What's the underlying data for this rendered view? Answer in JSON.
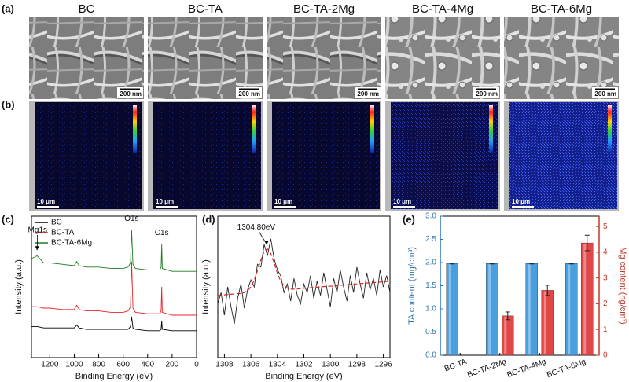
{
  "figure": {
    "panel_labels": [
      "(a)",
      "(b)",
      "(c)",
      "(d)",
      "(e)"
    ],
    "columns": [
      "BC",
      "BC-TA",
      "BC-TA-2Mg",
      "BC-TA-4Mg",
      "BC-TA-6Mg"
    ],
    "sem_scale_bar": "200 nm",
    "map_scale_bar": "10 μm"
  },
  "chart_data": [
    {
      "type": "line",
      "xlabel": "Binding Energy (eV)",
      "ylabel": "Intensity (a.u.)",
      "x": [
        1350,
        1304,
        1250,
        1200,
        1100,
        1000,
        980,
        960,
        900,
        800,
        700,
        600,
        560,
        540,
        531,
        520,
        500,
        400,
        300,
        290,
        285,
        280,
        200,
        100,
        0
      ],
      "series": [
        {
          "name": "BC",
          "color": "#000000",
          "values": [
            22,
            22,
            21,
            21,
            21,
            21,
            23,
            21,
            20,
            20,
            20,
            20,
            20,
            22,
            29,
            21,
            20,
            19,
            19,
            20,
            26,
            20,
            19,
            19,
            19
          ]
        },
        {
          "name": "BC-TA",
          "color": "#e8262a",
          "values": [
            36,
            36,
            35,
            35,
            34,
            34,
            37,
            34,
            33,
            33,
            32,
            32,
            33,
            36,
            68,
            35,
            32,
            31,
            31,
            33,
            50,
            32,
            30,
            30,
            30
          ]
        },
        {
          "name": "BC-TA-6Mg",
          "color": "#1e7b1e",
          "values": [
            70,
            72,
            67,
            67,
            66,
            65,
            68,
            65,
            64,
            64,
            63,
            63,
            64,
            67,
            90,
            66,
            63,
            62,
            62,
            64,
            80,
            63,
            61,
            61,
            61
          ]
        }
      ],
      "xlim": [
        1350,
        0
      ],
      "xticks": [
        1200,
        1000,
        800,
        600,
        400,
        200,
        0
      ],
      "ylim": [
        0,
        100
      ],
      "legend": "upper left",
      "annotations": [
        {
          "text": "Mg1s",
          "x": 1300,
          "y": 90,
          "arrow": [
            1304,
            76
          ]
        },
        {
          "text": "O1s",
          "x": 531,
          "y": 98
        },
        {
          "text": "C1s",
          "x": 285,
          "y": 88
        }
      ]
    },
    {
      "type": "line",
      "xlabel": "Binding Energy (eV)",
      "ylabel": "Intensity (a.u.)",
      "x": [
        1308.5,
        1308.25,
        1308,
        1307.75,
        1307.5,
        1307.25,
        1307,
        1306.75,
        1306.5,
        1306.25,
        1306,
        1305.75,
        1305.5,
        1305.25,
        1305,
        1304.75,
        1304.5,
        1304.25,
        1304,
        1303.75,
        1303.5,
        1303.25,
        1303,
        1302.75,
        1302.5,
        1302.25,
        1302,
        1301.75,
        1301.5,
        1301.25,
        1301,
        1300.75,
        1300.5,
        1300.25,
        1300,
        1299.75,
        1299.5,
        1299.25,
        1299,
        1298.75,
        1298.5,
        1298.25,
        1298,
        1297.75,
        1297.5,
        1297.25,
        1297,
        1296.75,
        1296.5,
        1296.25,
        1296,
        1295.75,
        1295.5
      ],
      "series": [
        {
          "color": "#222222",
          "values": [
            38,
            46,
            30,
            50,
            36,
            24,
            42,
            52,
            35,
            48,
            55,
            50,
            66,
            64,
            80,
            72,
            84,
            70,
            62,
            58,
            46,
            52,
            40,
            56,
            44,
            38,
            52,
            46,
            58,
            42,
            54,
            44,
            60,
            48,
            36,
            56,
            46,
            62,
            50,
            40,
            58,
            46,
            64,
            52,
            42,
            60,
            48,
            56,
            44,
            62,
            50,
            58,
            46
          ]
        },
        {
          "color": "#d62728",
          "dash": true,
          "values": [
            44.0,
            44.2,
            44.4,
            44.6,
            44.8,
            45.0,
            45.2,
            45.3,
            46.0,
            47.3,
            50.0,
            54.7,
            61.5,
            69.1,
            75.1,
            76.8,
            73.6,
            67.0,
            59.7,
            54.1,
            50.7,
            49.1,
            48.5,
            48.4,
            48.6,
            48.8,
            49.0,
            49.2,
            49.4,
            49.6,
            49.8,
            50.0,
            50.2,
            50.4,
            50.5,
            50.7,
            50.9,
            51.1,
            51.3,
            51.5,
            51.7,
            51.9,
            52.1,
            52.3,
            52.5,
            52.7,
            52.9,
            53.0,
            53.2,
            53.4,
            53.6,
            53.8,
            54.0
          ]
        }
      ],
      "xlim": [
        1308.5,
        1295.5
      ],
      "xticks": [
        1308,
        1306,
        1304,
        1302,
        1300,
        1298,
        1296
      ],
      "ylim": [
        0,
        100
      ],
      "annotations": [
        {
          "text": "1304.80eV",
          "x": 1305.6,
          "y": 92,
          "arrow": [
            1304.8,
            80
          ]
        }
      ]
    },
    {
      "type": "bar",
      "ylabel": "TA content (mg/cm³)",
      "y2label": "Mg content (ng/cm³)",
      "categories": [
        "BC-TA",
        "BC-TA-2Mg",
        "BC-TA-4Mg",
        "BC-TA-6Mg"
      ],
      "series": [
        {
          "color": "#4a9fe0",
          "axis": "y",
          "values": [
            1.98,
            1.98,
            1.98,
            1.98
          ],
          "errors": [
            0.01,
            0.01,
            0.01,
            0.01
          ]
        },
        {
          "color": "#e04848",
          "axis": "y2",
          "values": [
            null,
            1.53,
            2.52,
            4.36
          ],
          "errors": [
            null,
            0.15,
            0.2,
            0.3
          ]
        }
      ],
      "ylim": [
        0,
        3
      ],
      "yticks": [
        {
          "value": 0,
          "label": "0.0"
        },
        {
          "value": 0.5,
          "label": "0.5"
        },
        {
          "value": 1,
          "label": "1.0"
        },
        {
          "value": 1.5,
          "label": "1.5"
        },
        {
          "value": 2,
          "label": "2.0"
        },
        {
          "value": 2.5,
          "label": "2.5"
        },
        {
          "value": 3,
          "label": "3.0"
        }
      ],
      "y2lim": [
        0,
        5.4
      ],
      "y2ticks": [
        0,
        1,
        2,
        3,
        4,
        5
      ],
      "y_color": "#2e75b6",
      "y2_color": "#c0392b"
    }
  ]
}
